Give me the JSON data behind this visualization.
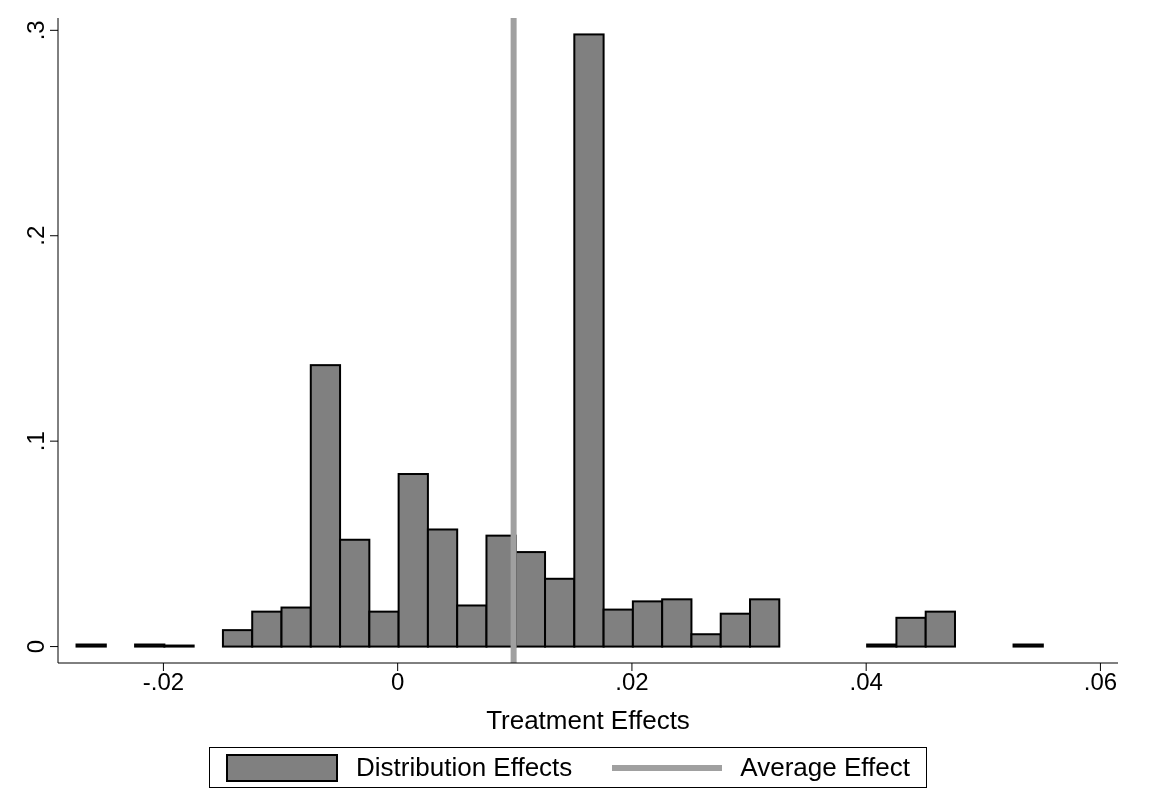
{
  "chart_data": {
    "type": "histogram",
    "xlabel": "Treatment Effects",
    "bins": [
      -0.0274,
      -0.0249,
      -0.0224,
      -0.0199,
      -0.0174,
      -0.0149,
      -0.0124,
      -0.0099,
      -0.0074,
      -0.0049,
      -0.0024,
      0.0001,
      0.0026,
      0.0051,
      0.0076,
      0.0101,
      0.0126,
      0.0151,
      0.0176,
      0.0201,
      0.0226,
      0.0251,
      0.0276,
      0.0301,
      0.0326,
      0.0351,
      0.0376,
      0.0401,
      0.0426,
      0.0451,
      0.0476,
      0.0501,
      0.0526,
      0.0551
    ],
    "series": [
      {
        "name": "Distribution Effects",
        "color": "#808080",
        "values": [
          0.001,
          null,
          0.001,
          0.0005,
          null,
          0.008,
          0.017,
          0.019,
          0.137,
          0.052,
          0.017,
          0.084,
          0.057,
          0.02,
          0.054,
          0.046,
          0.033,
          0.298,
          0.018,
          0.022,
          0.023,
          0.006,
          0.016,
          0.023,
          0,
          null,
          null,
          0.001,
          0.014,
          0.017,
          null,
          null,
          0.001
        ]
      }
    ],
    "ref_lines": [
      {
        "axis": "x",
        "value": 0.0099,
        "label": "Average Effect",
        "color": "#a0a0a0"
      }
    ],
    "xlim": [
      -0.029,
      0.0615
    ],
    "xticks": [
      {
        "value": -0.02,
        "label": "-.02"
      },
      0,
      {
        "value": 0.02,
        "label": ".02"
      },
      {
        "value": 0.04,
        "label": ".04"
      },
      {
        "value": 0.06,
        "label": ".06"
      }
    ],
    "ylim": [
      -0.008,
      0.306
    ],
    "yticks": [
      0,
      {
        "value": 0.1,
        "label": ".1"
      },
      {
        "value": 0.2,
        "label": ".2"
      },
      {
        "value": 0.3,
        "label": ".3"
      }
    ],
    "grid": false,
    "legend": "bottom"
  }
}
